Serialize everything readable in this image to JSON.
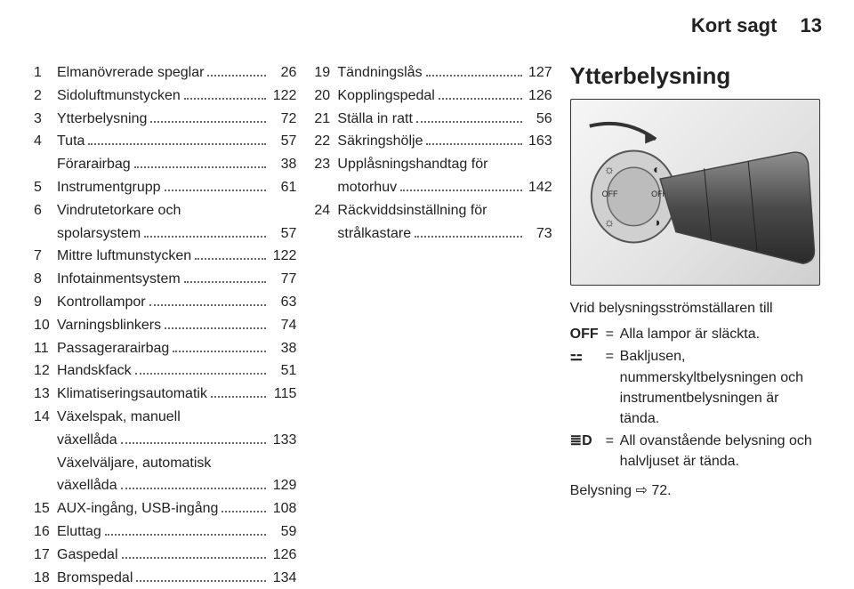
{
  "header": {
    "title": "Kort sagt",
    "page": "13"
  },
  "col1": [
    {
      "n": "1",
      "label": "Elmanövrerade speglar",
      "p": "26"
    },
    {
      "n": "2",
      "label": "Sidoluftmunstycken",
      "p": "122"
    },
    {
      "n": "3",
      "label": "Ytterbelysning",
      "p": "72"
    },
    {
      "n": "4",
      "label": "Tuta",
      "p": "57"
    },
    {
      "n": "",
      "label": "Förarairbag",
      "p": "38"
    },
    {
      "n": "5",
      "label": "Instrumentgrupp",
      "p": "61"
    },
    {
      "n": "6",
      "label": "Vindrutetorkare och\nspolarsystem",
      "p": "57"
    },
    {
      "n": "7",
      "label": "Mittre luftmunstycken",
      "p": "122"
    },
    {
      "n": "8",
      "label": "Infotainmentsystem",
      "p": "77"
    },
    {
      "n": "9",
      "label": "Kontrollampor",
      "p": "63"
    },
    {
      "n": "10",
      "label": "Varningsblinkers",
      "p": "74"
    },
    {
      "n": "11",
      "label": "Passagerarairbag",
      "p": "38"
    },
    {
      "n": "12",
      "label": "Handskfack",
      "p": "51"
    },
    {
      "n": "13",
      "label": "Klimatiseringsautomatik",
      "p": "115"
    },
    {
      "n": "14",
      "label": "Växelspak, manuell\nväxellåda",
      "p": "133"
    },
    {
      "n": "",
      "label": "Växelväljare, automatisk\nväxellåda",
      "p": "129"
    },
    {
      "n": "15",
      "label": "AUX-ingång, USB-ingång",
      "p": "108"
    },
    {
      "n": "16",
      "label": "Eluttag",
      "p": "59"
    },
    {
      "n": "17",
      "label": "Gaspedal",
      "p": "126"
    },
    {
      "n": "18",
      "label": "Bromspedal",
      "p": "134"
    }
  ],
  "col2": [
    {
      "n": "19",
      "label": "Tändningslås",
      "p": "127"
    },
    {
      "n": "20",
      "label": "Kopplingspedal",
      "p": "126"
    },
    {
      "n": "21",
      "label": "Ställa in ratt",
      "p": "56"
    },
    {
      "n": "22",
      "label": "Säkringshölje",
      "p": "163"
    },
    {
      "n": "23",
      "label": "Upplåsningshandtag för\nmotorhuv",
      "p": "142"
    },
    {
      "n": "24",
      "label": "Räckviddsinställning för\nstrålkastare",
      "p": "73"
    }
  ],
  "col3": {
    "title": "Ytterbelysning",
    "caption": "Vrid belysningsströmställaren till",
    "legend": [
      {
        "sym": "OFF",
        "txt": "Alla lampor är släckta."
      },
      {
        "sym": "⚍",
        "txt": "Bakljusen, nummerskyltbelysningen och instrumentbelysningen är tända."
      },
      {
        "sym": "≣D",
        "txt": "All ovanstående belysning och halvljuset är tända."
      }
    ],
    "ref_label": "Belysning",
    "ref_arrow": "⇨",
    "ref_page": "72."
  },
  "figure": {
    "labels": {
      "off1": "OFF",
      "off2": "OFF"
    },
    "colors": {
      "stalk_dark": "#3a3a3a",
      "stalk_light": "#8a8a8a",
      "dial": "#d0d0d0",
      "dial_stroke": "#555",
      "arrow": "#333"
    }
  }
}
